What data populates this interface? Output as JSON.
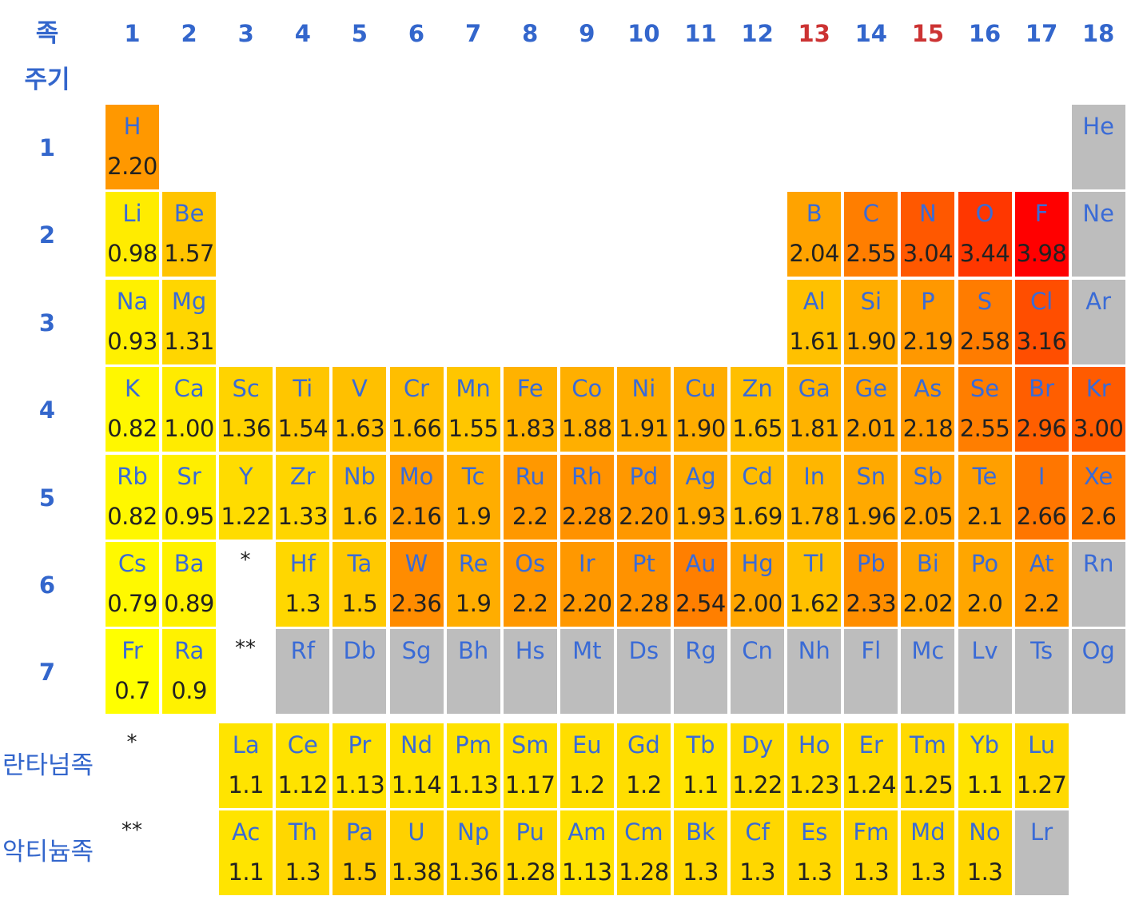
{
  "header": {
    "group_label": "족",
    "period_label": "주기",
    "groups": [
      "1",
      "2",
      "3",
      "4",
      "5",
      "6",
      "7",
      "8",
      "9",
      "10",
      "11",
      "12",
      "13",
      "14",
      "15",
      "16",
      "17",
      "18"
    ],
    "periods": [
      "1",
      "2",
      "3",
      "4",
      "5",
      "6",
      "7"
    ],
    "lanthanide_label": "란타넘족",
    "actinide_label": "악티늄족",
    "lanthanide_marker": "*",
    "actinide_marker": "**"
  },
  "colors": {
    "header_blue": "#3366cc",
    "header_red": "#cc3333",
    "symbol_blue": "#3a6bd6",
    "no_data_gray": "#bdbdbd",
    "low": "#ffff00",
    "high": "#ff0000"
  },
  "red_groups": [
    "13",
    "15"
  ],
  "elements": [
    {
      "sym": "H",
      "en": "2.20",
      "p": 1,
      "g": 1
    },
    {
      "sym": "He",
      "en": "",
      "p": 1,
      "g": 18
    },
    {
      "sym": "Li",
      "en": "0.98",
      "p": 2,
      "g": 1
    },
    {
      "sym": "Be",
      "en": "1.57",
      "p": 2,
      "g": 2
    },
    {
      "sym": "B",
      "en": "2.04",
      "p": 2,
      "g": 13
    },
    {
      "sym": "C",
      "en": "2.55",
      "p": 2,
      "g": 14
    },
    {
      "sym": "N",
      "en": "3.04",
      "p": 2,
      "g": 15
    },
    {
      "sym": "O",
      "en": "3.44",
      "p": 2,
      "g": 16
    },
    {
      "sym": "F",
      "en": "3.98",
      "p": 2,
      "g": 17
    },
    {
      "sym": "Ne",
      "en": "",
      "p": 2,
      "g": 18
    },
    {
      "sym": "Na",
      "en": "0.93",
      "p": 3,
      "g": 1
    },
    {
      "sym": "Mg",
      "en": "1.31",
      "p": 3,
      "g": 2
    },
    {
      "sym": "Al",
      "en": "1.61",
      "p": 3,
      "g": 13
    },
    {
      "sym": "Si",
      "en": "1.90",
      "p": 3,
      "g": 14
    },
    {
      "sym": "P",
      "en": "2.19",
      "p": 3,
      "g": 15
    },
    {
      "sym": "S",
      "en": "2.58",
      "p": 3,
      "g": 16
    },
    {
      "sym": "Cl",
      "en": "3.16",
      "p": 3,
      "g": 17
    },
    {
      "sym": "Ar",
      "en": "",
      "p": 3,
      "g": 18
    },
    {
      "sym": "K",
      "en": "0.82",
      "p": 4,
      "g": 1
    },
    {
      "sym": "Ca",
      "en": "1.00",
      "p": 4,
      "g": 2
    },
    {
      "sym": "Sc",
      "en": "1.36",
      "p": 4,
      "g": 3
    },
    {
      "sym": "Ti",
      "en": "1.54",
      "p": 4,
      "g": 4
    },
    {
      "sym": "V",
      "en": "1.63",
      "p": 4,
      "g": 5
    },
    {
      "sym": "Cr",
      "en": "1.66",
      "p": 4,
      "g": 6
    },
    {
      "sym": "Mn",
      "en": "1.55",
      "p": 4,
      "g": 7
    },
    {
      "sym": "Fe",
      "en": "1.83",
      "p": 4,
      "g": 8
    },
    {
      "sym": "Co",
      "en": "1.88",
      "p": 4,
      "g": 9
    },
    {
      "sym": "Ni",
      "en": "1.91",
      "p": 4,
      "g": 10
    },
    {
      "sym": "Cu",
      "en": "1.90",
      "p": 4,
      "g": 11
    },
    {
      "sym": "Zn",
      "en": "1.65",
      "p": 4,
      "g": 12
    },
    {
      "sym": "Ga",
      "en": "1.81",
      "p": 4,
      "g": 13
    },
    {
      "sym": "Ge",
      "en": "2.01",
      "p": 4,
      "g": 14
    },
    {
      "sym": "As",
      "en": "2.18",
      "p": 4,
      "g": 15
    },
    {
      "sym": "Se",
      "en": "2.55",
      "p": 4,
      "g": 16
    },
    {
      "sym": "Br",
      "en": "2.96",
      "p": 4,
      "g": 17
    },
    {
      "sym": "Kr",
      "en": "3.00",
      "p": 4,
      "g": 18
    },
    {
      "sym": "Rb",
      "en": "0.82",
      "p": 5,
      "g": 1
    },
    {
      "sym": "Sr",
      "en": "0.95",
      "p": 5,
      "g": 2
    },
    {
      "sym": "Y",
      "en": "1.22",
      "p": 5,
      "g": 3
    },
    {
      "sym": "Zr",
      "en": "1.33",
      "p": 5,
      "g": 4
    },
    {
      "sym": "Nb",
      "en": "1.6",
      "p": 5,
      "g": 5
    },
    {
      "sym": "Mo",
      "en": "2.16",
      "p": 5,
      "g": 6
    },
    {
      "sym": "Tc",
      "en": "1.9",
      "p": 5,
      "g": 7
    },
    {
      "sym": "Ru",
      "en": "2.2",
      "p": 5,
      "g": 8
    },
    {
      "sym": "Rh",
      "en": "2.28",
      "p": 5,
      "g": 9
    },
    {
      "sym": "Pd",
      "en": "2.20",
      "p": 5,
      "g": 10
    },
    {
      "sym": "Ag",
      "en": "1.93",
      "p": 5,
      "g": 11
    },
    {
      "sym": "Cd",
      "en": "1.69",
      "p": 5,
      "g": 12
    },
    {
      "sym": "In",
      "en": "1.78",
      "p": 5,
      "g": 13
    },
    {
      "sym": "Sn",
      "en": "1.96",
      "p": 5,
      "g": 14
    },
    {
      "sym": "Sb",
      "en": "2.05",
      "p": 5,
      "g": 15
    },
    {
      "sym": "Te",
      "en": "2.1",
      "p": 5,
      "g": 16
    },
    {
      "sym": "I",
      "en": "2.66",
      "p": 5,
      "g": 17
    },
    {
      "sym": "Xe",
      "en": "2.6",
      "p": 5,
      "g": 18
    },
    {
      "sym": "Cs",
      "en": "0.79",
      "p": 6,
      "g": 1
    },
    {
      "sym": "Ba",
      "en": "0.89",
      "p": 6,
      "g": 2
    },
    {
      "sym": "Hf",
      "en": "1.3",
      "p": 6,
      "g": 4
    },
    {
      "sym": "Ta",
      "en": "1.5",
      "p": 6,
      "g": 5
    },
    {
      "sym": "W",
      "en": "2.36",
      "p": 6,
      "g": 6
    },
    {
      "sym": "Re",
      "en": "1.9",
      "p": 6,
      "g": 7
    },
    {
      "sym": "Os",
      "en": "2.2",
      "p": 6,
      "g": 8
    },
    {
      "sym": "Ir",
      "en": "2.20",
      "p": 6,
      "g": 9
    },
    {
      "sym": "Pt",
      "en": "2.28",
      "p": 6,
      "g": 10
    },
    {
      "sym": "Au",
      "en": "2.54",
      "p": 6,
      "g": 11
    },
    {
      "sym": "Hg",
      "en": "2.00",
      "p": 6,
      "g": 12
    },
    {
      "sym": "Tl",
      "en": "1.62",
      "p": 6,
      "g": 13
    },
    {
      "sym": "Pb",
      "en": "2.33",
      "p": 6,
      "g": 14
    },
    {
      "sym": "Bi",
      "en": "2.02",
      "p": 6,
      "g": 15
    },
    {
      "sym": "Po",
      "en": "2.0",
      "p": 6,
      "g": 16
    },
    {
      "sym": "At",
      "en": "2.2",
      "p": 6,
      "g": 17
    },
    {
      "sym": "Rn",
      "en": "",
      "p": 6,
      "g": 18
    },
    {
      "sym": "Fr",
      "en": "0.7",
      "p": 7,
      "g": 1
    },
    {
      "sym": "Ra",
      "en": "0.9",
      "p": 7,
      "g": 2
    },
    {
      "sym": "Rf",
      "en": "",
      "p": 7,
      "g": 4
    },
    {
      "sym": "Db",
      "en": "",
      "p": 7,
      "g": 5
    },
    {
      "sym": "Sg",
      "en": "",
      "p": 7,
      "g": 6
    },
    {
      "sym": "Bh",
      "en": "",
      "p": 7,
      "g": 7
    },
    {
      "sym": "Hs",
      "en": "",
      "p": 7,
      "g": 8
    },
    {
      "sym": "Mt",
      "en": "",
      "p": 7,
      "g": 9
    },
    {
      "sym": "Ds",
      "en": "",
      "p": 7,
      "g": 10
    },
    {
      "sym": "Rg",
      "en": "",
      "p": 7,
      "g": 11
    },
    {
      "sym": "Cn",
      "en": "",
      "p": 7,
      "g": 12
    },
    {
      "sym": "Nh",
      "en": "",
      "p": 7,
      "g": 13
    },
    {
      "sym": "Fl",
      "en": "",
      "p": 7,
      "g": 14
    },
    {
      "sym": "Mc",
      "en": "",
      "p": 7,
      "g": 15
    },
    {
      "sym": "Lv",
      "en": "",
      "p": 7,
      "g": 16
    },
    {
      "sym": "Ts",
      "en": "",
      "p": 7,
      "g": 17
    },
    {
      "sym": "Og",
      "en": "",
      "p": 7,
      "g": 18
    },
    {
      "sym": "La",
      "en": "1.1",
      "p": 8,
      "g": 3
    },
    {
      "sym": "Ce",
      "en": "1.12",
      "p": 8,
      "g": 4
    },
    {
      "sym": "Pr",
      "en": "1.13",
      "p": 8,
      "g": 5
    },
    {
      "sym": "Nd",
      "en": "1.14",
      "p": 8,
      "g": 6
    },
    {
      "sym": "Pm",
      "en": "1.13",
      "p": 8,
      "g": 7
    },
    {
      "sym": "Sm",
      "en": "1.17",
      "p": 8,
      "g": 8
    },
    {
      "sym": "Eu",
      "en": "1.2",
      "p": 8,
      "g": 9
    },
    {
      "sym": "Gd",
      "en": "1.2",
      "p": 8,
      "g": 10
    },
    {
      "sym": "Tb",
      "en": "1.1",
      "p": 8,
      "g": 11
    },
    {
      "sym": "Dy",
      "en": "1.22",
      "p": 8,
      "g": 12
    },
    {
      "sym": "Ho",
      "en": "1.23",
      "p": 8,
      "g": 13
    },
    {
      "sym": "Er",
      "en": "1.24",
      "p": 8,
      "g": 14
    },
    {
      "sym": "Tm",
      "en": "1.25",
      "p": 8,
      "g": 15
    },
    {
      "sym": "Yb",
      "en": "1.1",
      "p": 8,
      "g": 16
    },
    {
      "sym": "Lu",
      "en": "1.27",
      "p": 8,
      "g": 17
    },
    {
      "sym": "Ac",
      "en": "1.1",
      "p": 9,
      "g": 3
    },
    {
      "sym": "Th",
      "en": "1.3",
      "p": 9,
      "g": 4
    },
    {
      "sym": "Pa",
      "en": "1.5",
      "p": 9,
      "g": 5
    },
    {
      "sym": "U",
      "en": "1.38",
      "p": 9,
      "g": 6
    },
    {
      "sym": "Np",
      "en": "1.36",
      "p": 9,
      "g": 7
    },
    {
      "sym": "Pu",
      "en": "1.28",
      "p": 9,
      "g": 8
    },
    {
      "sym": "Am",
      "en": "1.13",
      "p": 9,
      "g": 9
    },
    {
      "sym": "Cm",
      "en": "1.28",
      "p": 9,
      "g": 10
    },
    {
      "sym": "Bk",
      "en": "1.3",
      "p": 9,
      "g": 11
    },
    {
      "sym": "Cf",
      "en": "1.3",
      "p": 9,
      "g": 12
    },
    {
      "sym": "Es",
      "en": "1.3",
      "p": 9,
      "g": 13
    },
    {
      "sym": "Fm",
      "en": "1.3",
      "p": 9,
      "g": 14
    },
    {
      "sym": "Md",
      "en": "1.3",
      "p": 9,
      "g": 15
    },
    {
      "sym": "No",
      "en": "1.3",
      "p": 9,
      "g": 16
    },
    {
      "sym": "Lr",
      "en": "",
      "p": 9,
      "g": 17
    }
  ]
}
